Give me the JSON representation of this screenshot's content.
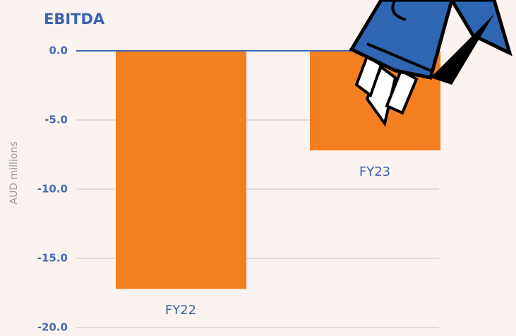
{
  "chart_data": {
    "type": "bar",
    "title": "EBITDA",
    "y_label": "AUD millions",
    "categories": [
      "FY22",
      "FY23"
    ],
    "values": [
      -17.2,
      -7.2
    ],
    "color": "#f47f20",
    "ylim": [
      -20,
      0
    ],
    "yticks": [
      {
        "value": 0,
        "label": "0.0"
      },
      {
        "value": -5,
        "label": "-5.0"
      },
      {
        "value": -10,
        "label": "-10.0"
      },
      {
        "value": -15,
        "label": "-15.0"
      },
      {
        "value": -20,
        "label": "-20.0"
      }
    ],
    "grid": true
  }
}
